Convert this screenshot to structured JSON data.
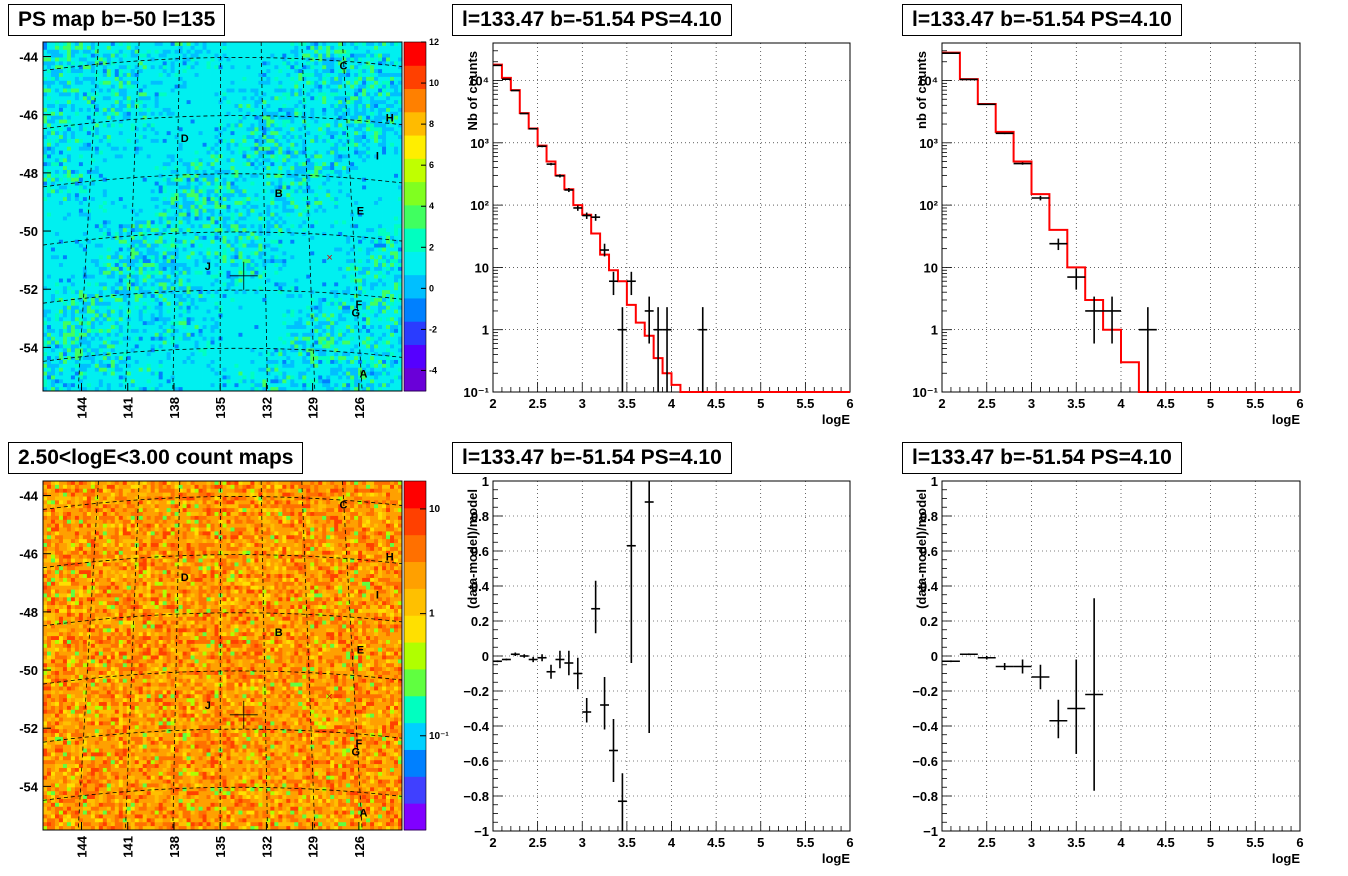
{
  "titles": {
    "map_top": "PS map b=-50 l=135",
    "map_bottom": "2.50<logE<3.00 count maps",
    "spec_top_left": "l=133.47 b=-51.54 PS=4.10",
    "spec_top_right": "l=133.47 b=-51.54 PS=4.10",
    "res_bottom_left": "l=133.47 b=-51.54 PS=4.10",
    "res_bottom_right": "l=133.47 b=-51.54 PS=4.10"
  },
  "colors": {
    "model": "#ff0000",
    "data": "#000000",
    "gridline": "#000000"
  },
  "chart_data": [
    {
      "type": "heatmap",
      "title": "PS map b=-50 l=135",
      "ylim": [
        -55.5,
        -43.5
      ],
      "yticks": [
        "-44",
        "-46",
        "-48",
        "-50",
        "-52",
        "-54"
      ],
      "xticks": [
        "144",
        "141",
        "138",
        "135",
        "132",
        "129",
        "126"
      ],
      "xlim": [
        146.5,
        123.2
      ],
      "colorbar": {
        "min": -5,
        "max": 12,
        "ticks": [
          "12",
          "10",
          "8",
          "6",
          "4",
          "2",
          "0",
          "-2",
          "-4"
        ]
      },
      "labels": [
        {
          "text": "C",
          "l": 127.0,
          "b": -44.3
        },
        {
          "text": "H",
          "l": 124.0,
          "b": -46.1
        },
        {
          "text": "D",
          "l": 137.3,
          "b": -46.8
        },
        {
          "text": "I",
          "l": 124.8,
          "b": -47.4
        },
        {
          "text": "B",
          "l": 131.2,
          "b": -48.7
        },
        {
          "text": "E",
          "l": 125.9,
          "b": -49.3
        },
        {
          "text": "J",
          "l": 135.8,
          "b": -51.2
        },
        {
          "text": "F",
          "l": 126.0,
          "b": -52.5
        },
        {
          "text": "G",
          "l": 126.2,
          "b": -52.8
        },
        {
          "text": "A",
          "l": 125.7,
          "b": -54.9
        }
      ],
      "marker": {
        "l": 133.47,
        "b": -51.54
      }
    },
    {
      "type": "heatmap",
      "title": "2.50<logE<3.00 count maps",
      "ylim": [
        -55.5,
        -43.5
      ],
      "yticks": [
        "-44",
        "-46",
        "-48",
        "-50",
        "-52",
        "-54"
      ],
      "xticks": [
        "144",
        "141",
        "138",
        "135",
        "132",
        "129",
        "126"
      ],
      "xlim": [
        146.5,
        123.2
      ],
      "colorbar": {
        "scale": "log",
        "ticks": [
          "10",
          "1",
          "10⁻¹"
        ]
      },
      "labels": [
        {
          "text": "C",
          "l": 127.0,
          "b": -44.3
        },
        {
          "text": "H",
          "l": 124.0,
          "b": -46.1
        },
        {
          "text": "D",
          "l": 137.3,
          "b": -46.8
        },
        {
          "text": "I",
          "l": 124.8,
          "b": -47.4
        },
        {
          "text": "B",
          "l": 131.2,
          "b": -48.7
        },
        {
          "text": "E",
          "l": 125.9,
          "b": -49.3
        },
        {
          "text": "J",
          "l": 135.8,
          "b": -51.2
        },
        {
          "text": "F",
          "l": 126.0,
          "b": -52.5
        },
        {
          "text": "G",
          "l": 126.2,
          "b": -52.8
        },
        {
          "text": "A",
          "l": 125.7,
          "b": -54.9
        }
      ],
      "marker": {
        "l": 133.47,
        "b": -51.54
      }
    },
    {
      "type": "line",
      "title": "l=133.47 b=-51.54 PS=4.10",
      "xlabel": "logE",
      "ylabel": "Nb of counts",
      "yscale": "log",
      "xlim": [
        2,
        6
      ],
      "ylim": [
        0.1,
        40000
      ],
      "xticks": [
        "2",
        "2.5",
        "3",
        "3.5",
        "4",
        "4.5",
        "5",
        "5.5",
        "6"
      ],
      "yticks": [
        "10⁻¹",
        "1",
        "10",
        "10²",
        "10³",
        "10⁴"
      ],
      "model_step": {
        "edges": [
          2.0,
          2.1,
          2.2,
          2.3,
          2.4,
          2.5,
          2.6,
          2.7,
          2.8,
          2.9,
          3.0,
          3.1,
          3.2,
          3.3,
          3.4,
          3.5,
          3.6,
          3.7,
          3.8,
          3.9,
          4.0,
          4.1,
          4.2,
          6.0
        ],
        "values": [
          18000,
          11000,
          7000,
          3000,
          1700,
          900,
          500,
          300,
          180,
          100,
          70,
          35,
          16,
          9,
          6,
          2.5,
          1.3,
          0.8,
          0.35,
          0.2,
          0.13,
          0.1,
          0.1
        ]
      },
      "data_points": [
        {
          "x": 2.05,
          "y": 17500,
          "lo": 17200,
          "hi": 17800,
          "xerr": 0.05
        },
        {
          "x": 2.15,
          "y": 10500,
          "lo": 10300,
          "hi": 10700,
          "xerr": 0.05
        },
        {
          "x": 2.25,
          "y": 6900,
          "lo": 6800,
          "hi": 7000,
          "xerr": 0.05
        },
        {
          "x": 2.35,
          "y": 2950,
          "lo": 2900,
          "hi": 3000,
          "xerr": 0.05
        },
        {
          "x": 2.45,
          "y": 1680,
          "lo": 1640,
          "hi": 1720,
          "xerr": 0.05
        },
        {
          "x": 2.55,
          "y": 880,
          "lo": 850,
          "hi": 910,
          "xerr": 0.05
        },
        {
          "x": 2.65,
          "y": 455,
          "lo": 435,
          "hi": 475,
          "xerr": 0.05
        },
        {
          "x": 2.75,
          "y": 295,
          "lo": 278,
          "hi": 312,
          "xerr": 0.05
        },
        {
          "x": 2.85,
          "y": 175,
          "lo": 162,
          "hi": 188,
          "xerr": 0.05
        },
        {
          "x": 2.95,
          "y": 90,
          "lo": 81,
          "hi": 99,
          "xerr": 0.05
        },
        {
          "x": 3.05,
          "y": 68,
          "lo": 60,
          "hi": 76,
          "xerr": 0.05
        },
        {
          "x": 3.15,
          "y": 64,
          "lo": 56,
          "hi": 72,
          "xerr": 0.05
        },
        {
          "x": 3.25,
          "y": 19,
          "lo": 15,
          "hi": 24,
          "xerr": 0.05
        },
        {
          "x": 3.35,
          "y": 6,
          "lo": 3.6,
          "hi": 8.5,
          "xerr": 0.05
        },
        {
          "x": 3.45,
          "y": 1,
          "lo": 0.1,
          "hi": 2.3,
          "xerr": 0.05
        },
        {
          "x": 3.55,
          "y": 6,
          "lo": 3.6,
          "hi": 8.5,
          "xerr": 0.05
        },
        {
          "x": 3.75,
          "y": 2,
          "lo": 0.6,
          "hi": 3.4,
          "xerr": 0.05
        },
        {
          "x": 3.85,
          "y": 1,
          "lo": 0.1,
          "hi": 2.3,
          "xerr": 0.05
        },
        {
          "x": 3.95,
          "y": 1,
          "lo": 0.1,
          "hi": 2.3,
          "xerr": 0.05
        },
        {
          "x": 4.35,
          "y": 1,
          "lo": 0.1,
          "hi": 2.3,
          "xerr": 0.05
        }
      ]
    },
    {
      "type": "line",
      "title": "l=133.47 b=-51.54 PS=4.10",
      "xlabel": "logE",
      "ylabel": "nb of counts",
      "yscale": "log",
      "xlim": [
        2,
        6
      ],
      "ylim": [
        0.1,
        40000
      ],
      "xticks": [
        "2",
        "2.5",
        "3",
        "3.5",
        "4",
        "4.5",
        "5",
        "5.5",
        "6"
      ],
      "yticks": [
        "10⁻¹",
        "1",
        "10",
        "10²",
        "10³",
        "10⁴"
      ],
      "model_step": {
        "edges": [
          2.0,
          2.2,
          2.4,
          2.6,
          2.8,
          3.0,
          3.2,
          3.4,
          3.6,
          3.8,
          4.0,
          4.2,
          6.0
        ],
        "values": [
          28000,
          10500,
          4200,
          1500,
          500,
          150,
          40,
          10,
          3,
          1.0,
          0.3,
          0.1
        ]
      },
      "data_points": [
        {
          "x": 2.1,
          "y": 27500,
          "lo": 27200,
          "hi": 27800,
          "xerr": 0.1
        },
        {
          "x": 2.3,
          "y": 10400,
          "lo": 10200,
          "hi": 10600,
          "xerr": 0.1
        },
        {
          "x": 2.5,
          "y": 4150,
          "lo": 4090,
          "hi": 4210,
          "xerr": 0.1
        },
        {
          "x": 2.7,
          "y": 1420,
          "lo": 1380,
          "hi": 1460,
          "xerr": 0.1
        },
        {
          "x": 2.9,
          "y": 465,
          "lo": 445,
          "hi": 485,
          "xerr": 0.1
        },
        {
          "x": 3.1,
          "y": 130,
          "lo": 119,
          "hi": 141,
          "xerr": 0.1
        },
        {
          "x": 3.3,
          "y": 24,
          "lo": 19,
          "hi": 29,
          "xerr": 0.1
        },
        {
          "x": 3.5,
          "y": 7,
          "lo": 4.4,
          "hi": 9.6,
          "xerr": 0.1
        },
        {
          "x": 3.7,
          "y": 2,
          "lo": 0.6,
          "hi": 3.4,
          "xerr": 0.1
        },
        {
          "x": 3.9,
          "y": 2,
          "lo": 0.6,
          "hi": 3.4,
          "xerr": 0.1
        },
        {
          "x": 4.3,
          "y": 1,
          "lo": 0.1,
          "hi": 2.3,
          "xerr": 0.1
        }
      ]
    },
    {
      "type": "scatter",
      "title": "l=133.47 b=-51.54 PS=4.10",
      "xlabel": "logE",
      "ylabel": "(data-model)/model",
      "xlim": [
        2,
        6
      ],
      "ylim": [
        -1,
        1
      ],
      "xticks": [
        "2",
        "2.5",
        "3",
        "3.5",
        "4",
        "4.5",
        "5",
        "5.5",
        "6"
      ],
      "yticks": [
        "−1",
        "−0.8",
        "−0.6",
        "−0.4",
        "−0.2",
        "0",
        "0.2",
        "0.4",
        "0.6",
        "0.8",
        "1"
      ],
      "data_points": [
        {
          "x": 2.05,
          "y": -0.03,
          "lo": -0.035,
          "hi": -0.025,
          "xerr": 0.05
        },
        {
          "x": 2.15,
          "y": -0.02,
          "lo": -0.025,
          "hi": -0.015,
          "xerr": 0.05
        },
        {
          "x": 2.25,
          "y": 0.01,
          "lo": 0.0,
          "hi": 0.02,
          "xerr": 0.05
        },
        {
          "x": 2.35,
          "y": 0.0,
          "lo": -0.01,
          "hi": 0.01,
          "xerr": 0.05
        },
        {
          "x": 2.45,
          "y": -0.02,
          "lo": -0.035,
          "hi": -0.005,
          "xerr": 0.05
        },
        {
          "x": 2.55,
          "y": -0.01,
          "lo": -0.03,
          "hi": 0.01,
          "xerr": 0.05
        },
        {
          "x": 2.65,
          "y": -0.09,
          "lo": -0.13,
          "hi": -0.05,
          "xerr": 0.05
        },
        {
          "x": 2.75,
          "y": -0.02,
          "lo": -0.07,
          "hi": 0.03,
          "xerr": 0.05
        },
        {
          "x": 2.85,
          "y": -0.04,
          "lo": -0.11,
          "hi": 0.03,
          "xerr": 0.05
        },
        {
          "x": 2.95,
          "y": -0.1,
          "lo": -0.19,
          "hi": -0.01,
          "xerr": 0.05
        },
        {
          "x": 3.05,
          "y": -0.32,
          "lo": -0.38,
          "hi": -0.24,
          "xerr": 0.05
        },
        {
          "x": 3.15,
          "y": 0.27,
          "lo": 0.13,
          "hi": 0.43,
          "xerr": 0.05
        },
        {
          "x": 3.25,
          "y": -0.28,
          "lo": -0.42,
          "hi": -0.12,
          "xerr": 0.05
        },
        {
          "x": 3.35,
          "y": -0.54,
          "lo": -0.72,
          "hi": -0.36,
          "xerr": 0.05
        },
        {
          "x": 3.45,
          "y": -0.83,
          "lo": -1.0,
          "hi": -0.67,
          "xerr": 0.05
        },
        {
          "x": 3.55,
          "y": 0.63,
          "lo": -0.04,
          "hi": 1.0,
          "xerr": 0.05
        },
        {
          "x": 3.75,
          "y": 0.88,
          "lo": -0.44,
          "hi": 1.0,
          "xerr": 0.05
        }
      ]
    },
    {
      "type": "scatter",
      "title": "l=133.47 b=-51.54 PS=4.10",
      "xlabel": "logE",
      "ylabel": "(data-model)/model",
      "xlim": [
        2,
        6
      ],
      "ylim": [
        -1,
        1
      ],
      "xticks": [
        "2",
        "2.5",
        "3",
        "3.5",
        "4",
        "4.5",
        "5",
        "5.5",
        "6"
      ],
      "yticks": [
        "−1",
        "−0.8",
        "−0.6",
        "−0.4",
        "−0.2",
        "0",
        "0.2",
        "0.4",
        "0.6",
        "0.8",
        "1"
      ],
      "data_points": [
        {
          "x": 2.1,
          "y": -0.03,
          "lo": -0.035,
          "hi": -0.025,
          "xerr": 0.1
        },
        {
          "x": 2.3,
          "y": 0.01,
          "lo": 0.005,
          "hi": 0.015,
          "xerr": 0.1
        },
        {
          "x": 2.5,
          "y": -0.01,
          "lo": -0.02,
          "hi": 0.0,
          "xerr": 0.1
        },
        {
          "x": 2.7,
          "y": -0.06,
          "lo": -0.08,
          "hi": -0.04,
          "xerr": 0.1
        },
        {
          "x": 2.9,
          "y": -0.06,
          "lo": -0.1,
          "hi": -0.02,
          "xerr": 0.1
        },
        {
          "x": 3.1,
          "y": -0.12,
          "lo": -0.19,
          "hi": -0.05,
          "xerr": 0.1
        },
        {
          "x": 3.3,
          "y": -0.37,
          "lo": -0.47,
          "hi": -0.25,
          "xerr": 0.1
        },
        {
          "x": 3.5,
          "y": -0.3,
          "lo": -0.56,
          "hi": -0.02,
          "xerr": 0.1
        },
        {
          "x": 3.7,
          "y": -0.22,
          "lo": -0.77,
          "hi": 0.33,
          "xerr": 0.1
        }
      ]
    }
  ]
}
